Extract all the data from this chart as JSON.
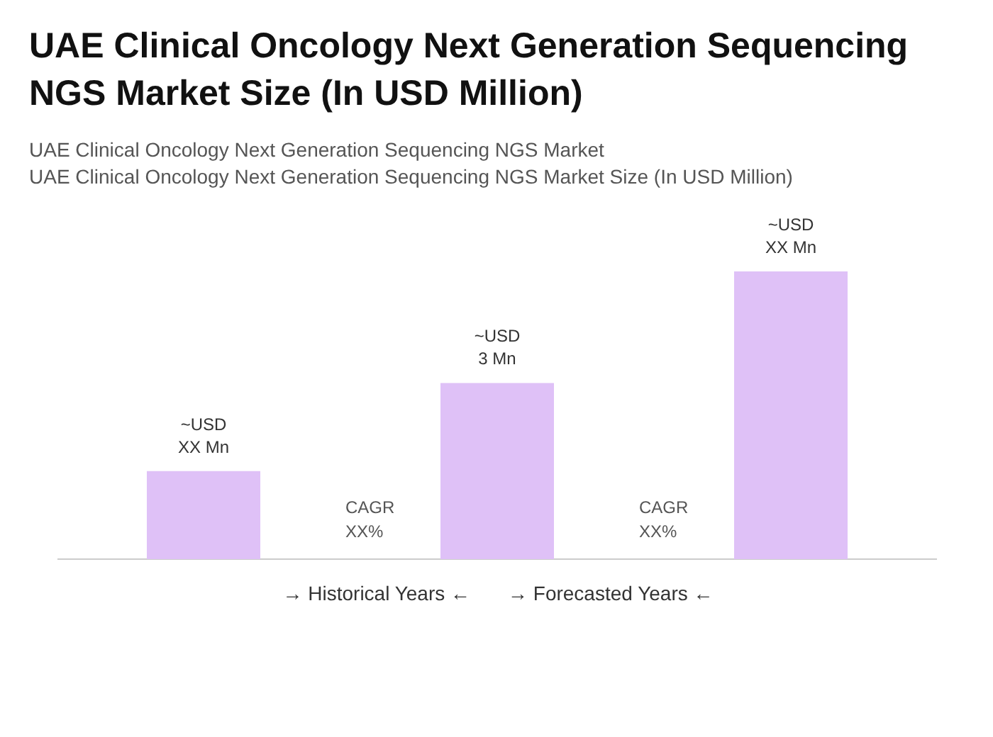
{
  "chart_data": {
    "type": "bar",
    "title": "UAE Clinical Oncology Next Generation Sequencing NGS Market Size (In USD Million)",
    "subtitle": "UAE Clinical Oncology Next Generation Sequencing NGS Market\nUAE Clinical Oncology Next Generation Sequencing NGS Market Size (In USD Million)",
    "categories": [
      null,
      null,
      null
    ],
    "values": [
      1.5,
      3,
      4.9
    ],
    "color": "#dfc1f7",
    "value_labels": [
      "~USD\nXX Mn",
      "~USD\n3 Mn",
      "~USD\nXX Mn"
    ],
    "annotations": [
      "CAGR\nXX%",
      "CAGR\nXX%",
      "→ Historical Years ←",
      "→ Forecasted Years ←"
    ],
    "grid": false
  }
}
